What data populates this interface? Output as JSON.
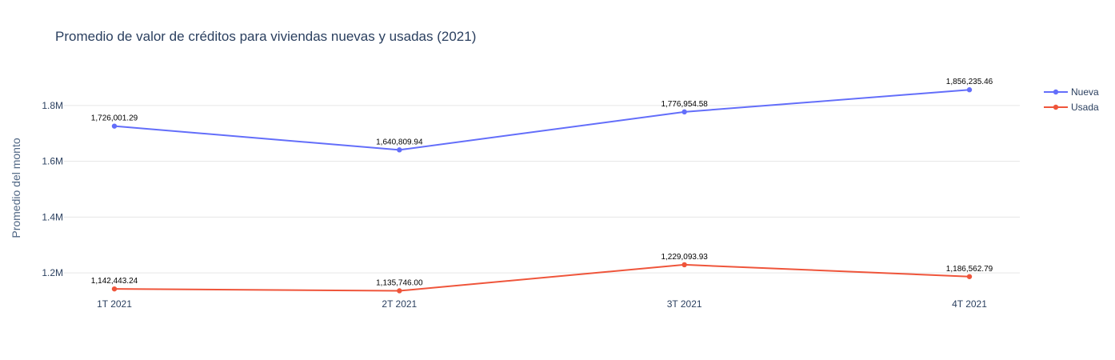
{
  "chart_data": {
    "type": "line",
    "title": "Promedio de valor de créditos para viviendas nuevas y usadas (2021)",
    "xlabel": "",
    "ylabel": "Promedio del monto",
    "categories": [
      "1T 2021",
      "2T 2021",
      "3T 2021",
      "4T 2021"
    ],
    "ylim": [
      1140000,
      1920000
    ],
    "yticks": [
      1200000,
      1400000,
      1600000,
      1800000
    ],
    "ytick_labels": [
      "1.2M",
      "1.4M",
      "1.6M",
      "1.8M"
    ],
    "grid": true,
    "legend_position": "top-right",
    "series": [
      {
        "name": "Nueva",
        "color": "#636efa",
        "values": [
          1726001.29,
          1640809.94,
          1776954.58,
          1856235.46
        ],
        "labels": [
          "1,726,001.29",
          "1,640,809.94",
          "1,776,954.58",
          "1,856,235.46"
        ]
      },
      {
        "name": "Usada",
        "color": "#ef553b",
        "values": [
          1142443.24,
          1135746.0,
          1229093.93,
          1186562.79
        ],
        "labels": [
          "1,142,443.24",
          "1,135,746.00",
          "1,229,093.93",
          "1,186,562.79"
        ]
      }
    ]
  }
}
